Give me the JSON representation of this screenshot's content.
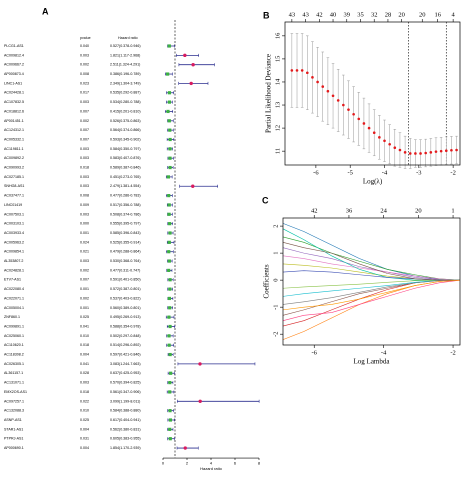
{
  "chart_data": [
    {
      "type": "forest",
      "panel": "A",
      "columns": [
        "pvalue",
        "Hazard ratio"
      ],
      "rows": [
        "PLCG1-AS1",
        "AC009812.4",
        "AC009667.2",
        "AP000873.4",
        "LINC1-AS1",
        "AC024428.1",
        "AC107832.5",
        "AC018812.6",
        "AP001451.1",
        "AC124312.1",
        "AC005332.1",
        "AC119811.1",
        "AC009892.2",
        "AC090993.2",
        "AC027185.1",
        "SNHG8-AS1",
        "AC037477.1",
        "LINC01419",
        "AC007503.1",
        "AC003103.1",
        "AC003933.4",
        "AC005963.2",
        "AC009854.1",
        "AL353807.2",
        "AC024828.1",
        "ETV7-AS1",
        "AC022080.4",
        "AC022071.1",
        "AC005004.1",
        "ZNF860.1",
        "AC099891.1",
        "AC025060.1",
        "AC110620.1",
        "AC118308.2",
        "AC026305.1",
        "AL361157.1",
        "AC131071.1",
        "EMX2OS-AS1",
        "AC097257.1",
        "AC132088.3",
        "ASNP-AS1",
        "STAR1-AS1",
        "PTPRJ-AS1",
        "AP000690.1"
      ],
      "pvalues": [
        "0.040",
        "0.003",
        "0.002",
        "0.008",
        "0.023",
        "0.017",
        "0.003",
        "0.007",
        "0.002",
        "0.007",
        "0.007",
        "0.003",
        "0.003",
        "0.018",
        "0.003",
        "0.003",
        "0.008",
        "0.009",
        "0.003",
        "0.000",
        "0.001",
        "0.024",
        "0.021",
        "0.003",
        "0.002",
        "0.007",
        "0.001",
        "0.002",
        "0.001",
        "0.025",
        "0.041",
        "0.010",
        "0.018",
        "0.004",
        "0.041",
        "0.028",
        "0.003",
        "0.018",
        "0.022",
        "0.010",
        "0.025",
        "0.004",
        "0.031",
        "0.004"
      ],
      "values": [
        0.527,
        1.821,
        2.511,
        0.386,
        2.349,
        0.535,
        0.534,
        0.415,
        0.526,
        0.564,
        0.593,
        0.584,
        0.583,
        0.589,
        0.451,
        2.479,
        0.477,
        0.517,
        0.508,
        0.555,
        0.585,
        0.525,
        0.479,
        0.53,
        0.477,
        0.591,
        0.572,
        0.537,
        0.56,
        0.495,
        0.588,
        0.502,
        0.514,
        0.597,
        3.083,
        0.637,
        0.57,
        0.561,
        3.099,
        0.584,
        0.617,
        0.562,
        0.605,
        1.854
      ],
      "lower": [
        0.378,
        1.117,
        1.324,
        0.196,
        1.304,
        0.292,
        0.28,
        0.201,
        0.375,
        0.374,
        0.345,
        0.35,
        0.407,
        0.387,
        0.273,
        1.381,
        0.286,
        0.356,
        0.374,
        0.395,
        0.396,
        0.355,
        0.288,
        0.368,
        0.311,
        0.401,
        0.387,
        0.403,
        0.389,
        0.269,
        0.354,
        0.297,
        0.296,
        0.421,
        1.244,
        0.425,
        0.394,
        0.347,
        1.199,
        0.388,
        0.404,
        0.38,
        0.383,
        1.17
      ],
      "upper": [
        0.946,
        2.968,
        4.291,
        0.789,
        3.749,
        0.887,
        0.788,
        0.81,
        0.863,
        0.866,
        0.902,
        0.797,
        0.876,
        0.846,
        0.765,
        4.554,
        0.783,
        0.788,
        0.786,
        0.797,
        0.843,
        0.914,
        0.864,
        0.764,
        0.747,
        0.85,
        0.801,
        0.822,
        0.801,
        0.913,
        0.978,
        0.848,
        0.892,
        0.846,
        7.663,
        0.953,
        0.825,
        0.906,
        8.011,
        0.88,
        0.941,
        0.831,
        0.955,
        2.939
      ],
      "value_labels": [
        "0.527(0.378-0.946)",
        "1.821(1.117-2.968)",
        "2.511(1.324-4.291)",
        "0.386(0.196-0.789)",
        "2.349(1.304-3.749)",
        "0.535(0.292-0.887)",
        "0.534(0.280-0.788)",
        "0.415(0.201-0.810)",
        "0.526(0.375-0.863)",
        "0.564(0.374-0.866)",
        "0.593(0.345-0.902)",
        "0.584(0.350-0.797)",
        "0.583(0.407-0.876)",
        "0.589(0.387-0.846)",
        "0.451(0.273-0.765)",
        "2.479(1.381-4.554)",
        "0.477(0.286-0.783)",
        "0.517(0.356-0.788)",
        "0.508(0.374-0.786)",
        "0.555(0.395-0.797)",
        "0.585(0.396-0.843)",
        "0.525(0.355-0.914)",
        "0.479(0.288-0.864)",
        "0.530(0.368-0.764)",
        "0.477(0.311-0.747)",
        "0.591(0.401-0.850)",
        "0.572(0.387-0.801)",
        "0.537(0.403-0.822)",
        "0.560(0.389-0.801)",
        "0.495(0.269-0.913)",
        "0.588(0.354-0.978)",
        "0.502(0.297-0.848)",
        "0.514(0.296-0.892)",
        "0.597(0.421-0.846)",
        "3.083(1.244-7.663)",
        "0.637(0.425-0.953)",
        "0.570(0.394-0.825)",
        "0.561(0.347-0.906)",
        "3.099(1.199-8.011)",
        "0.584(0.388-0.880)",
        "0.617(0.404-0.941)",
        "0.562(0.380-0.831)",
        "0.605(0.383-0.955)",
        "1.854(1.170-2.939)"
      ],
      "xlim": [
        0,
        8
      ],
      "xticks": [
        0,
        2,
        4,
        6,
        8
      ],
      "ref_line": 1,
      "xlabel": "Hazard ratio",
      "colors": {
        "protective": "#3cb043",
        "risk": "#d81b60",
        "ci": "#2b2f8f"
      }
    },
    {
      "type": "cv",
      "panel": "B",
      "x": [
        -6.7,
        -6.55,
        -6.4,
        -6.25,
        -6.1,
        -5.95,
        -5.8,
        -5.65,
        -5.5,
        -5.35,
        -5.2,
        -5.05,
        -4.9,
        -4.75,
        -4.6,
        -4.45,
        -4.3,
        -4.15,
        -4.0,
        -3.85,
        -3.7,
        -3.55,
        -3.4,
        -3.25,
        -3.1,
        -2.95,
        -2.8,
        -2.65,
        -2.5,
        -2.35,
        -2.2,
        -2.05,
        -1.9
      ],
      "values": [
        14.5,
        14.5,
        14.5,
        14.4,
        14.2,
        14.0,
        13.8,
        13.6,
        13.4,
        13.2,
        13.0,
        12.8,
        12.6,
        12.4,
        12.2,
        12.0,
        11.8,
        11.6,
        11.45,
        11.3,
        11.15,
        11.05,
        10.95,
        10.9,
        10.9,
        10.9,
        10.92,
        10.95,
        10.98,
        11.0,
        11.02,
        11.04,
        11.05
      ],
      "errors": [
        1.6,
        1.6,
        1.6,
        1.6,
        1.55,
        1.5,
        1.5,
        1.45,
        1.4,
        1.35,
        1.3,
        1.25,
        1.2,
        1.15,
        1.1,
        1.05,
        1.0,
        0.95,
        0.9,
        0.85,
        0.8,
        0.75,
        0.7,
        0.65,
        0.6,
        0.6,
        0.6,
        0.6,
        0.6,
        0.6,
        0.6,
        0.6,
        0.6
      ],
      "xlim": [
        -6.9,
        -1.8
      ],
      "xticks": [
        -6,
        -5,
        -4,
        -3,
        -2
      ],
      "ylim": [
        10.4,
        16.6
      ],
      "yticks": [
        11,
        12,
        13,
        14,
        15,
        16
      ],
      "top_ticks": [
        {
          "value": -6.7,
          "label": "43"
        },
        {
          "value": -6.3,
          "label": "43"
        },
        {
          "value": -5.9,
          "label": "42"
        },
        {
          "value": -5.5,
          "label": "40"
        },
        {
          "value": -5.1,
          "label": "39"
        },
        {
          "value": -4.7,
          "label": "35"
        },
        {
          "value": -4.3,
          "label": "32"
        },
        {
          "value": -3.9,
          "label": "28"
        },
        {
          "value": -3.5,
          "label": "20"
        },
        {
          "value": -2.9,
          "label": "20"
        },
        {
          "value": -2.45,
          "label": "16"
        },
        {
          "value": -2.0,
          "label": "4"
        }
      ],
      "vlines": [
        -3.3,
        -2.2
      ],
      "xlabel": "Log(λ)",
      "ylabel": "Partial Likelihood Deviance",
      "color": "#e31a1c"
    },
    {
      "type": "paths",
      "panel": "C",
      "x": [
        -6.9,
        -6.3,
        -5.5,
        -4.7,
        -3.9,
        -3.1,
        -2.4,
        -1.8
      ],
      "series": [
        {
          "color": "#1f77b4",
          "values": [
            2.1,
            1.8,
            1.3,
            0.8,
            0.4,
            0.15,
            0.03,
            0
          ]
        },
        {
          "color": "#ff7f0e",
          "values": [
            -2.2,
            -1.9,
            -1.4,
            -0.9,
            -0.5,
            -0.2,
            -0.05,
            0
          ]
        },
        {
          "color": "#2ca02c",
          "values": [
            1.6,
            1.4,
            1.0,
            0.7,
            0.4,
            0.2,
            0.05,
            0
          ]
        },
        {
          "color": "#d62728",
          "values": [
            -1.7,
            -1.5,
            -1.1,
            -0.7,
            -0.35,
            -0.1,
            0,
            0
          ]
        },
        {
          "color": "#9467bd",
          "values": [
            1.2,
            1.0,
            0.8,
            0.5,
            0.3,
            0.1,
            0.02,
            0
          ]
        },
        {
          "color": "#8c564b",
          "values": [
            -1.3,
            -1.1,
            -0.8,
            -0.5,
            -0.3,
            -0.1,
            0,
            0
          ]
        },
        {
          "color": "#e377c2",
          "values": [
            0.9,
            0.8,
            0.6,
            0.45,
            0.3,
            0.15,
            0.05,
            0
          ]
        },
        {
          "color": "#7f7f7f",
          "values": [
            -0.9,
            -0.8,
            -0.65,
            -0.45,
            -0.25,
            -0.1,
            -0.02,
            0
          ]
        },
        {
          "color": "#bcbd22",
          "values": [
            0.6,
            0.55,
            0.45,
            0.3,
            0.15,
            0.05,
            0,
            0
          ]
        },
        {
          "color": "#17becf",
          "values": [
            -0.6,
            -0.5,
            -0.4,
            -0.3,
            -0.2,
            -0.08,
            0,
            0
          ]
        },
        {
          "color": "#00bfa5",
          "values": [
            1.9,
            1.5,
            0.9,
            0.4,
            0.1,
            0,
            0,
            0
          ]
        },
        {
          "color": "#ff4081",
          "values": [
            -1.5,
            -1.3,
            -1.2,
            -0.9,
            -0.6,
            -0.3,
            -0.1,
            0
          ]
        },
        {
          "color": "#3f51b5",
          "values": [
            0.3,
            0.35,
            0.3,
            0.2,
            0.1,
            0.05,
            0,
            0
          ]
        },
        {
          "color": "#8bc34a",
          "values": [
            -0.3,
            -0.25,
            -0.2,
            -0.15,
            -0.08,
            -0.02,
            0,
            0
          ]
        },
        {
          "color": "#795548",
          "values": [
            1.4,
            1.2,
            1.0,
            0.6,
            0.25,
            0.05,
            0,
            0
          ]
        },
        {
          "color": "#ff9800",
          "values": [
            -1.1,
            -1.0,
            -0.9,
            -0.7,
            -0.45,
            -0.2,
            -0.05,
            0
          ]
        }
      ],
      "xlim": [
        -6.9,
        -1.8
      ],
      "xticks": [
        -6,
        -4,
        -2
      ],
      "ylim": [
        -2.4,
        2.3
      ],
      "yticks": [
        -2,
        -1,
        0,
        1,
        2
      ],
      "top_ticks": [
        {
          "value": -6,
          "label": "42"
        },
        {
          "value": -5,
          "label": "36"
        },
        {
          "value": -4,
          "label": "24"
        },
        {
          "value": -3,
          "label": "20"
        },
        {
          "value": -2,
          "label": "1"
        }
      ],
      "xlabel": "Log Lambda",
      "ylabel": "Coefficients"
    }
  ]
}
